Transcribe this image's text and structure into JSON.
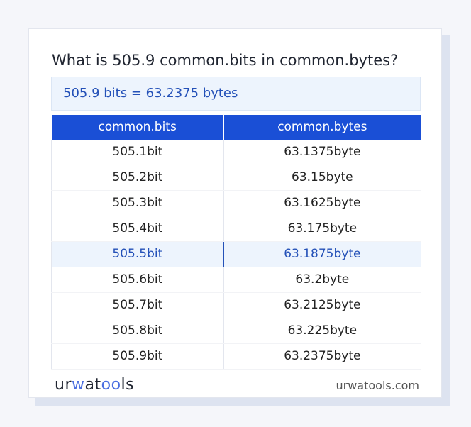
{
  "title": "What is 505.9 common.bits in common.bytes?",
  "result": "505.9 bits = 63.2375 bytes",
  "table": {
    "headers": [
      "common.bits",
      "common.bytes"
    ],
    "rows": [
      [
        "505.1bit",
        "63.1375byte"
      ],
      [
        "505.2bit",
        "63.15byte"
      ],
      [
        "505.3bit",
        "63.1625byte"
      ],
      [
        "505.4bit",
        "63.175byte"
      ],
      [
        "505.5bit",
        "63.1875byte"
      ],
      [
        "505.6bit",
        "63.2byte"
      ],
      [
        "505.7bit",
        "63.2125byte"
      ],
      [
        "505.8bit",
        "63.225byte"
      ],
      [
        "505.9bit",
        "63.2375byte"
      ]
    ],
    "highlighted_row": 4
  },
  "footer": {
    "logo": "urwatools",
    "site": "urwatools.com"
  },
  "colors": {
    "accent": "#1a4fd6",
    "highlight_text": "#2451b8"
  }
}
